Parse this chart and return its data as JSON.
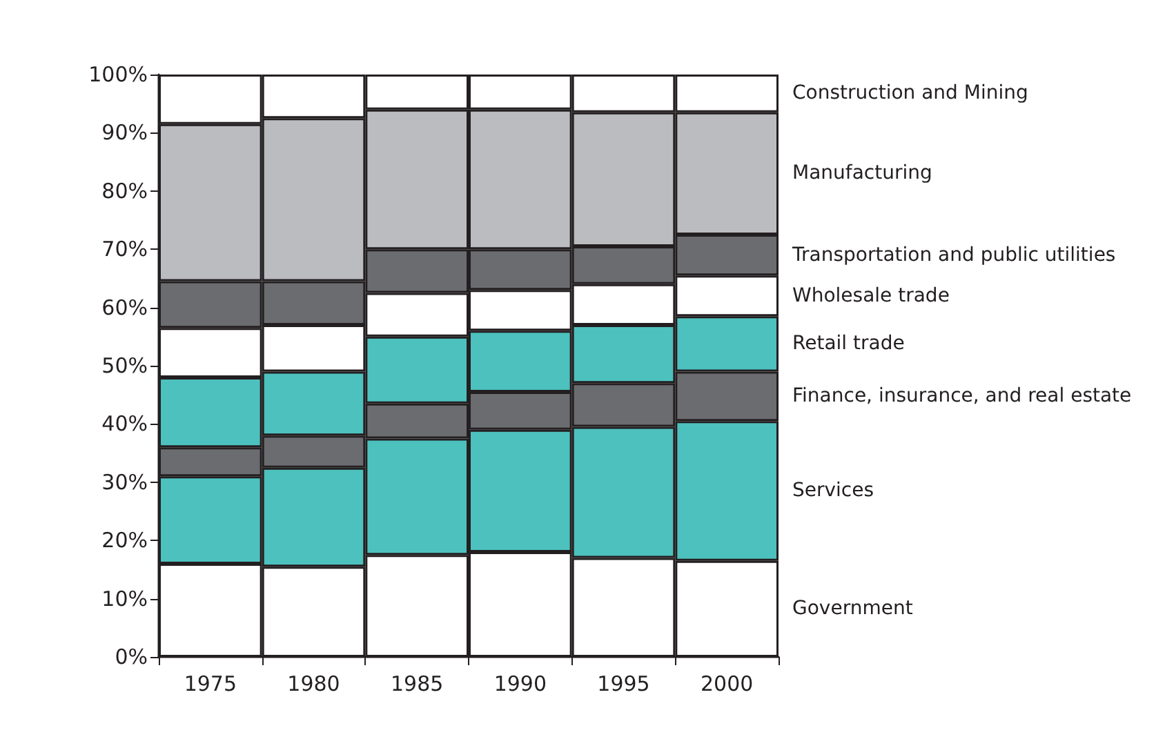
{
  "chart_data": {
    "type": "bar",
    "stacked": true,
    "categories": [
      "1975",
      "1980",
      "1985",
      "1990",
      "1995",
      "2000"
    ],
    "series": [
      {
        "name": "Government",
        "color": "#ffffff",
        "values": [
          16,
          15.5,
          17.5,
          18,
          17,
          16.5
        ]
      },
      {
        "name": "Services",
        "color": "#4dc1be",
        "values": [
          15,
          17,
          20,
          21,
          22.5,
          24
        ]
      },
      {
        "name": "Finance, insurance, and real estate",
        "color": "#6b6c70",
        "values": [
          5,
          5.5,
          6,
          6.5,
          7.5,
          8.5
        ]
      },
      {
        "name": "Retail trade",
        "color": "#4dc1be",
        "values": [
          12,
          11,
          11.5,
          10.5,
          10,
          9.5
        ]
      },
      {
        "name": "Wholesale trade",
        "color": "#ffffff",
        "values": [
          8.5,
          8,
          7.5,
          7,
          7,
          7
        ]
      },
      {
        "name": "Transportation and public utilities",
        "color": "#6b6c70",
        "values": [
          8,
          7.5,
          7.5,
          7,
          6.5,
          7
        ]
      },
      {
        "name": "Manufacturing",
        "color": "#bbbcc0",
        "values": [
          27,
          28,
          24,
          24,
          23,
          21
        ]
      },
      {
        "name": "Construction and Mining",
        "color": "#ffffff",
        "values": [
          8.5,
          7.5,
          6,
          6,
          6.5,
          6.5
        ]
      }
    ],
    "ylim": [
      0,
      100
    ],
    "yticks": [
      {
        "value": 0,
        "label": "0%"
      },
      {
        "value": 10,
        "label": "10%"
      },
      {
        "value": 20,
        "label": "20%"
      },
      {
        "value": 30,
        "label": "30%"
      },
      {
        "value": 40,
        "label": "40%"
      },
      {
        "value": 50,
        "label": "50%"
      },
      {
        "value": 60,
        "label": "60%"
      },
      {
        "value": 70,
        "label": "70%"
      },
      {
        "value": 80,
        "label": "80%"
      },
      {
        "value": 90,
        "label": "90%"
      },
      {
        "value": 100,
        "label": "100%"
      }
    ],
    "grid": false
  }
}
